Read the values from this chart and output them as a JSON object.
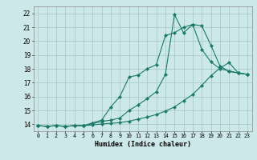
{
  "xlabel": "Humidex (Indice chaleur)",
  "bg_color": "#cce8e8",
  "grid_color": "#aacccc",
  "line_color": "#1a7a6a",
  "xlim": [
    -0.5,
    23.5
  ],
  "ylim": [
    13.5,
    22.5
  ],
  "xticks": [
    0,
    1,
    2,
    3,
    4,
    5,
    6,
    7,
    8,
    9,
    10,
    11,
    12,
    13,
    14,
    15,
    16,
    17,
    18,
    19,
    20,
    21,
    22,
    23
  ],
  "yticks": [
    14,
    15,
    16,
    17,
    18,
    19,
    20,
    21,
    22
  ],
  "line1_x": [
    0,
    1,
    2,
    3,
    4,
    5,
    6,
    7,
    8,
    9,
    10,
    11,
    12,
    13,
    14,
    15,
    16,
    17,
    18,
    19,
    20,
    21,
    22,
    23
  ],
  "line1_y": [
    13.9,
    13.85,
    13.9,
    13.85,
    13.9,
    13.9,
    14.05,
    14.2,
    14.3,
    14.45,
    15.0,
    15.4,
    15.85,
    16.35,
    17.6,
    21.9,
    20.6,
    21.2,
    21.1,
    19.7,
    18.2,
    17.8,
    17.7,
    17.6
  ],
  "line2_x": [
    0,
    1,
    2,
    3,
    4,
    5,
    6,
    7,
    8,
    9,
    10,
    11,
    12,
    13,
    14,
    15,
    16,
    17,
    18,
    19,
    20,
    21,
    22,
    23
  ],
  "line2_y": [
    13.9,
    13.85,
    13.9,
    13.85,
    13.9,
    13.9,
    14.1,
    14.3,
    15.25,
    16.0,
    17.4,
    17.55,
    18.0,
    18.3,
    20.4,
    20.6,
    21.0,
    21.2,
    19.4,
    18.5,
    18.0,
    17.85,
    17.7,
    17.6
  ],
  "line3_x": [
    0,
    1,
    2,
    3,
    4,
    5,
    6,
    7,
    8,
    9,
    10,
    11,
    12,
    13,
    14,
    15,
    16,
    17,
    18,
    19,
    20,
    21,
    22,
    23
  ],
  "line3_y": [
    13.9,
    13.85,
    13.9,
    13.85,
    13.9,
    13.9,
    13.95,
    14.02,
    14.07,
    14.12,
    14.22,
    14.37,
    14.52,
    14.7,
    14.95,
    15.25,
    15.7,
    16.15,
    16.8,
    17.5,
    18.05,
    18.45,
    17.7,
    17.6
  ]
}
